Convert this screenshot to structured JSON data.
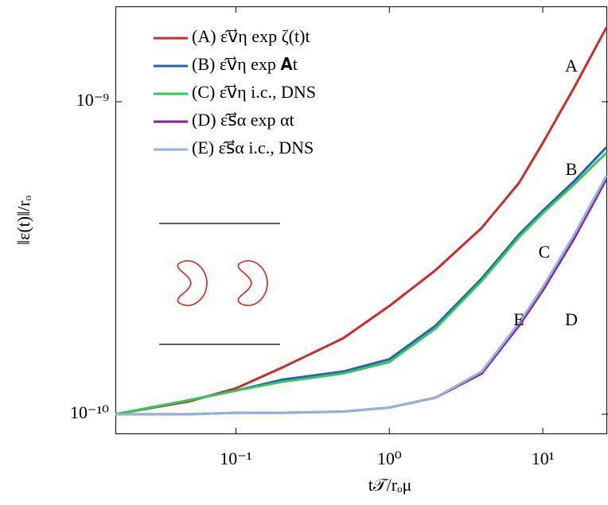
{
  "chart_data": {
    "type": "line",
    "x_label": "t𝒯/rₒμ",
    "y_label": "‖ε(t)‖/rₒ",
    "log_x": true,
    "log_y": true,
    "xlim": [
      0.0164,
      26.6
    ],
    "ylim": [
      8.63e-11,
      2.02e-09
    ],
    "xticks": [
      {
        "value": 0.1,
        "label": "10⁻¹"
      },
      {
        "value": 1,
        "label": "10⁰"
      },
      {
        "value": 10,
        "label": "10¹"
      }
    ],
    "yticks": [
      {
        "value": 1e-10,
        "label": "10⁻¹⁰"
      },
      {
        "value": 1e-09,
        "label": "10⁻⁹"
      }
    ],
    "legend_position": "upper left",
    "x": [
      0.0164,
      0.05,
      0.1,
      0.2,
      0.5,
      1,
      2,
      4,
      7,
      10,
      16,
      26
    ],
    "series": [
      {
        "name": "(A) ε̂v⃗η exp ζ(t)t",
        "label": "A",
        "color": "#cc2b2b",
        "values": [
          1e-10,
          1.1e-10,
          1.21e-10,
          1.41e-10,
          1.75e-10,
          2.22e-10,
          2.89e-10,
          3.95e-10,
          5.5e-10,
          7.38e-10,
          1.11e-09,
          1.73e-09
        ]
      },
      {
        "name": "(B) ε̂v⃗η exp 𝐀t",
        "label": "B",
        "color": "#2a5cc6",
        "values": [
          1e-10,
          1.11e-10,
          1.19e-10,
          1.29e-10,
          1.37e-10,
          1.5e-10,
          1.92e-10,
          2.72e-10,
          3.76e-10,
          4.48e-10,
          5.57e-10,
          7.16e-10
        ]
      },
      {
        "name": "(C) ε̂v⃗η i.c., DNS",
        "label": "C",
        "color": "#2ecc50",
        "values": [
          1e-10,
          1.11e-10,
          1.19e-10,
          1.27e-10,
          1.35e-10,
          1.47e-10,
          1.88e-10,
          2.67e-10,
          3.69e-10,
          4.4e-10,
          5.44e-10,
          6.87e-10
        ]
      },
      {
        "name": "(D) ε̂s⃗α exp αt",
        "label": "D",
        "color": "#8e1c9b",
        "values": [
          1e-10,
          1e-10,
          1.01e-10,
          1.01e-10,
          1.02e-10,
          1.05e-10,
          1.13e-10,
          1.35e-10,
          1.92e-10,
          2.49e-10,
          3.65e-10,
          5.66e-10
        ]
      },
      {
        "name": "(E) ε̂s⃗α i.c., DNS",
        "label": "E",
        "color": "#8fb4d8",
        "values": [
          1e-10,
          1e-10,
          1.01e-10,
          1.01e-10,
          1.02e-10,
          1.05e-10,
          1.13e-10,
          1.37e-10,
          1.96e-10,
          2.55e-10,
          3.75e-10,
          5.8e-10
        ]
      }
    ]
  }
}
